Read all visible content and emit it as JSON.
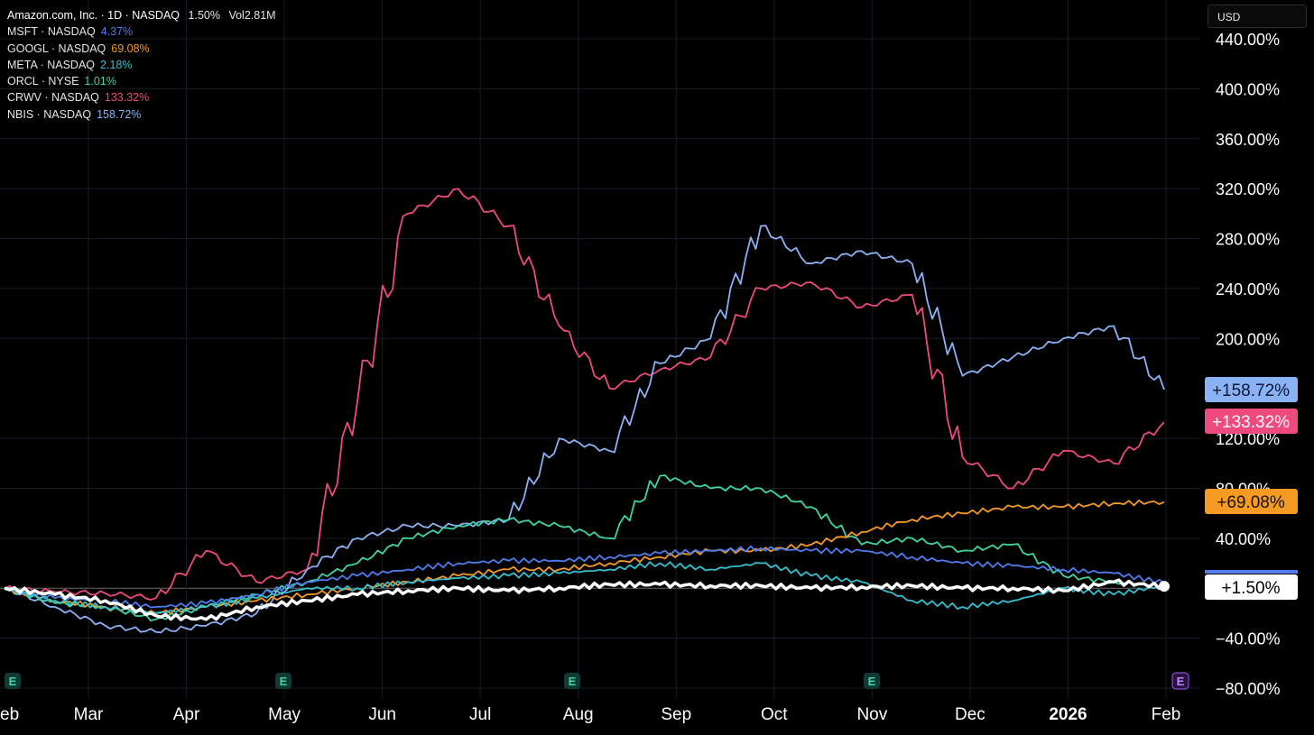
{
  "legend": {
    "main": {
      "label": "Amazon.com, Inc. · 1D · NASDAQ",
      "change": "1.50%",
      "volume": "Vol2.81M"
    },
    "items": [
      {
        "label": "MSFT · NASDAQ",
        "change": "4.37%",
        "color": "#4f7df0"
      },
      {
        "label": "GOOGL · NASDAQ",
        "change": "69.08%",
        "color": "#f59a23"
      },
      {
        "label": "META · NASDAQ",
        "change": "2.18%",
        "color": "#35c0d0"
      },
      {
        "label": "ORCL · NYSE",
        "change": "1.01%",
        "color": "#3ed6a4"
      },
      {
        "label": "CRWV · NASDAQ",
        "change": "133.32%",
        "color": "#ef4a7e"
      },
      {
        "label": "NBIS · NASDAQ",
        "change": "158.72%",
        "color": "#8bb2f5"
      }
    ]
  },
  "currency_button": "USD",
  "chart_data": {
    "type": "line",
    "y_unit": "%",
    "y_range": [
      -80,
      440
    ],
    "y_ticks": [
      "440.00%",
      "400.00%",
      "360.00%",
      "320.00%",
      "280.00%",
      "240.00%",
      "200.00%",
      "120.00%",
      "80.00%",
      "40.00%",
      "−40.00%",
      "−80.00%"
    ],
    "y_tick_values": [
      440,
      400,
      360,
      320,
      280,
      240,
      200,
      120,
      80,
      40,
      -40,
      -80
    ],
    "x_ticks": [
      "eb",
      "Mar",
      "Apr",
      "May",
      "Jun",
      "Jul",
      "Aug",
      "Sep",
      "Oct",
      "Nov",
      "Dec",
      "2026",
      "Feb"
    ],
    "x_tick_bold": "2026",
    "x": [
      "Feb",
      "Mar",
      "Mar",
      "Apr",
      "Apr",
      "May",
      "May",
      "Jun",
      "Jun",
      "Jul",
      "Jul",
      "Aug",
      "Aug",
      "Sep",
      "Sep",
      "Oct",
      "Oct",
      "Nov",
      "Nov",
      "Dec",
      "Dec",
      "Jan",
      "Jan",
      "Feb"
    ],
    "grid": true,
    "legend_position": "top-left",
    "earnings_marker": "E",
    "earnings_markers_at": [
      "Feb",
      "May",
      "Aug",
      "Nov"
    ],
    "end_badges": [
      {
        "text": "+158.72%",
        "value": 158.72,
        "bg": "#8bb2f5",
        "fg": "#0b1a33"
      },
      {
        "text": "+133.32%",
        "value": 133.32,
        "bg": "#ef4a7e",
        "fg": "#ffffff"
      },
      {
        "text": "+69.08%",
        "value": 69.08,
        "bg": "#f59a23",
        "fg": "#1a1000"
      },
      {
        "text": "+1.50%",
        "value": 1.5,
        "bg": "#ffffff",
        "fg": "#000000"
      }
    ],
    "series": [
      {
        "name": "CRWV · NASDAQ",
        "color": "#ef4a7e",
        "values": [
          0,
          -3,
          -4,
          -8,
          30,
          5,
          15,
          150,
          300,
          320,
          290,
          210,
          160,
          175,
          185,
          240,
          245,
          225,
          235,
          105,
          80,
          110,
          100,
          133
        ]
      },
      {
        "name": "NBIS · NASDAQ",
        "color": "#8bb2f5",
        "values": [
          0,
          -15,
          -30,
          -35,
          -30,
          -20,
          15,
          40,
          50,
          50,
          55,
          120,
          110,
          180,
          200,
          290,
          260,
          270,
          260,
          170,
          185,
          200,
          210,
          159
        ]
      },
      {
        "name": "ORCL · NYSE",
        "color": "#3ed6a4",
        "values": [
          0,
          -12,
          -15,
          -25,
          -15,
          -5,
          5,
          20,
          40,
          50,
          55,
          50,
          40,
          90,
          80,
          80,
          65,
          35,
          40,
          30,
          35,
          10,
          5,
          1.01
        ]
      },
      {
        "name": "GOOGL · NASDAQ",
        "color": "#f59a23",
        "values": [
          0,
          -10,
          -15,
          -20,
          -15,
          -10,
          -5,
          0,
          5,
          10,
          15,
          15,
          20,
          25,
          30,
          30,
          35,
          45,
          55,
          60,
          65,
          65,
          68,
          69
        ]
      },
      {
        "name": "MSFT · NASDAQ",
        "color": "#4f7df0",
        "values": [
          0,
          -8,
          -10,
          -15,
          -12,
          -5,
          5,
          10,
          15,
          20,
          22,
          22,
          25,
          28,
          30,
          32,
          30,
          30,
          25,
          20,
          18,
          15,
          12,
          4.37
        ]
      },
      {
        "name": "META · NASDAQ",
        "color": "#35c0d0",
        "values": [
          0,
          -10,
          -15,
          -20,
          -15,
          -8,
          0,
          0,
          5,
          8,
          10,
          12,
          15,
          20,
          15,
          20,
          10,
          5,
          -10,
          -15,
          -10,
          0,
          -5,
          2.18
        ]
      },
      {
        "name": "Amazon.com, Inc.",
        "color": "#ffffff",
        "values": [
          0,
          -5,
          -10,
          -22,
          -25,
          -15,
          -10,
          -5,
          -2,
          0,
          -2,
          0,
          3,
          3,
          2,
          2,
          0,
          1,
          2,
          0,
          0,
          -2,
          5,
          1.5
        ]
      }
    ]
  }
}
